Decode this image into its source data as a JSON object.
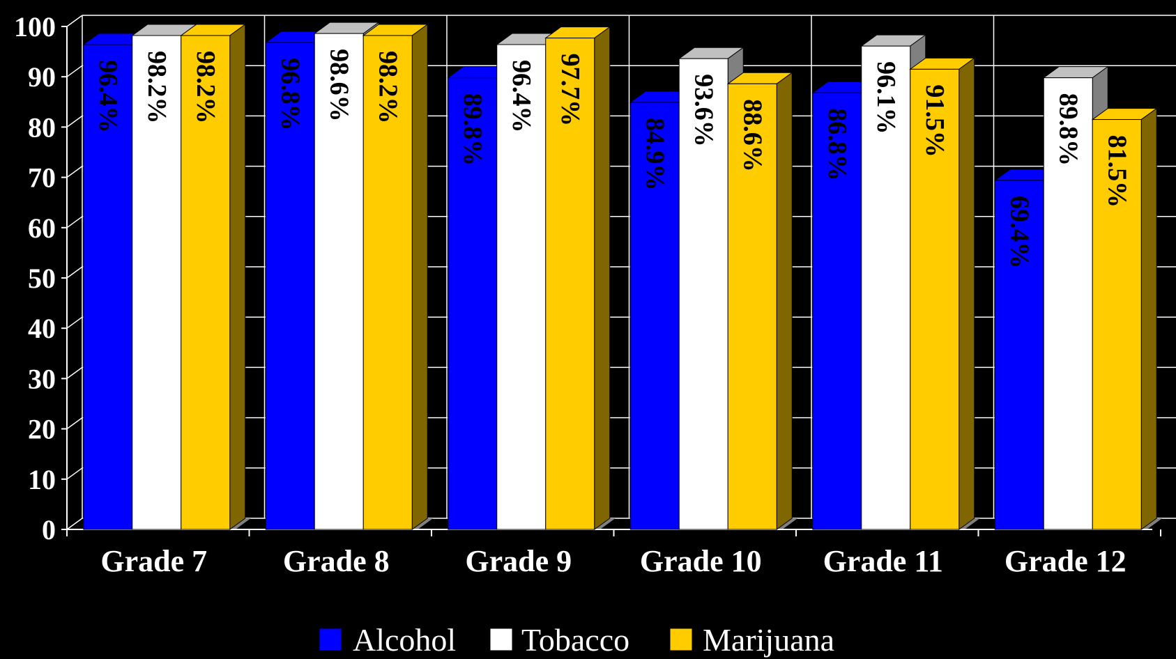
{
  "chart_data": {
    "type": "bar",
    "style": "3d-clustered-column",
    "categories": [
      "Grade 7",
      "Grade 8",
      "Grade 9",
      "Grade 10",
      "Grade 11",
      "Grade 12"
    ],
    "series": [
      {
        "name": "Alcohol",
        "color": "#0000ff",
        "side_color": "#000080",
        "values": [
          96.4,
          96.8,
          89.8,
          84.9,
          86.8,
          69.4
        ],
        "labels": [
          "96.4%",
          "96.8%",
          "89.8%",
          "84.9%",
          "86.8%",
          "69.4%"
        ]
      },
      {
        "name": "Tobacco",
        "color": "#ffffff",
        "side_color": "#808080",
        "values": [
          98.2,
          98.6,
          96.4,
          93.6,
          96.1,
          89.8
        ],
        "labels": [
          "98.2%",
          "98.6%",
          "96.4%",
          "93.6%",
          "96.1%",
          "89.8%"
        ]
      },
      {
        "name": "Marijuana",
        "color": "#ffcc00",
        "side_color": "#806600",
        "values": [
          98.2,
          98.2,
          97.7,
          88.6,
          91.5,
          81.5
        ],
        "labels": [
          "98.2%",
          "98.2%",
          "97.7%",
          "88.6%",
          "91.5%",
          "81.5%"
        ]
      }
    ],
    "yticks": [
      "0",
      "10",
      "20",
      "30",
      "40",
      "50",
      "60",
      "70",
      "80",
      "90",
      "100"
    ],
    "ylim": [
      0,
      100
    ],
    "grid": true,
    "legend_position": "bottom",
    "background": "#000000",
    "gridline_color": "#ffffff",
    "floor_color": "#808080"
  }
}
